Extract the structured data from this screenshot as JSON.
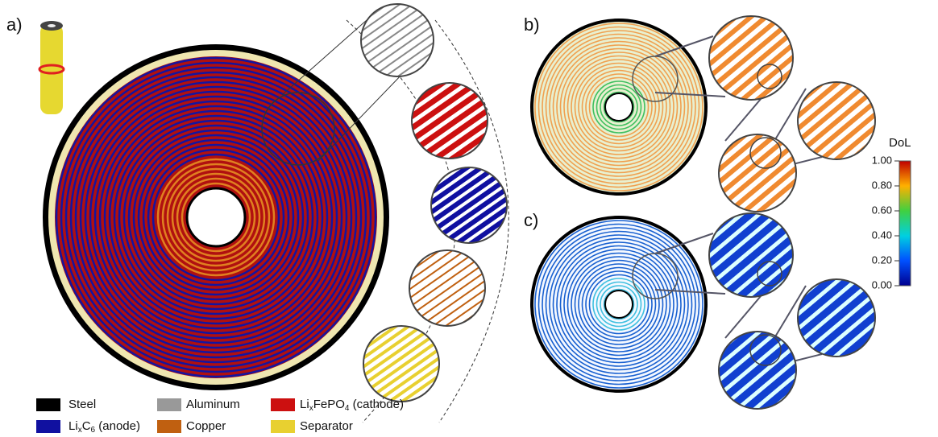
{
  "panels": {
    "a": {
      "label": "a)"
    },
    "b": {
      "label": "b)"
    },
    "c": {
      "label": "c)"
    }
  },
  "legend": {
    "items": [
      {
        "parts": [
          "Steel"
        ],
        "color": "#000000"
      },
      {
        "parts": [
          "Aluminum"
        ],
        "color": "#999999"
      },
      {
        "parts": [
          "Li",
          "x",
          "FePO",
          "4",
          " (cathode)"
        ],
        "color": "#cc1010"
      },
      {
        "parts": [
          "Li",
          "x",
          "C",
          "6",
          " (anode)"
        ],
        "color": "#1010a0"
      },
      {
        "parts": [
          "Copper"
        ],
        "color": "#c06010"
      },
      {
        "parts": [
          "Separator"
        ],
        "color": "#e8d030"
      }
    ]
  },
  "colorbar": {
    "title": "DoL",
    "ticks": [
      {
        "value": 1,
        "label": "1.00"
      },
      {
        "value": 0.8,
        "label": "0.80"
      },
      {
        "value": 0.6,
        "label": "0.60"
      },
      {
        "value": 0.4,
        "label": "0.40"
      },
      {
        "value": 0.2,
        "label": "0.20"
      },
      {
        "value": 0,
        "label": "0.00"
      }
    ]
  }
}
